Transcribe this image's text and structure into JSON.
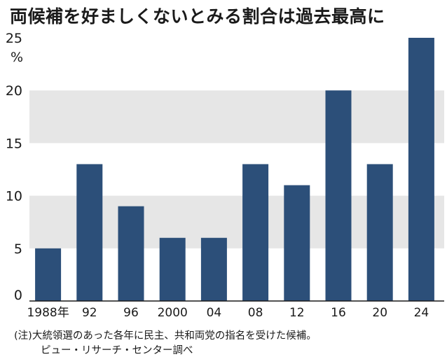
{
  "header": {
    "title": "両候補を好ましくないとみる割合は過去最高に"
  },
  "chart_data": {
    "type": "bar",
    "title": "両候補を好ましくないとみる割合は過去最高に",
    "unit_label": "%",
    "categories": [
      "1988年",
      "92",
      "96",
      "2000",
      "04",
      "08",
      "12",
      "16",
      "20",
      "24"
    ],
    "values": [
      5,
      13,
      9,
      6,
      6,
      13,
      11,
      20,
      13,
      25
    ],
    "ylim": [
      0,
      25
    ],
    "yticks": [
      "0",
      "5",
      "10",
      "15",
      "20",
      "25"
    ],
    "bar_color": "#2c4f79",
    "band_color": "#e6e6e6",
    "bands": [
      [
        5,
        10
      ],
      [
        15,
        20
      ]
    ]
  },
  "footnote": {
    "line1": "(注)大統領選のあった各年に民主、共和両党の指名を受けた候補。",
    "line2": "ピュー・リサーチ・センター調べ"
  }
}
